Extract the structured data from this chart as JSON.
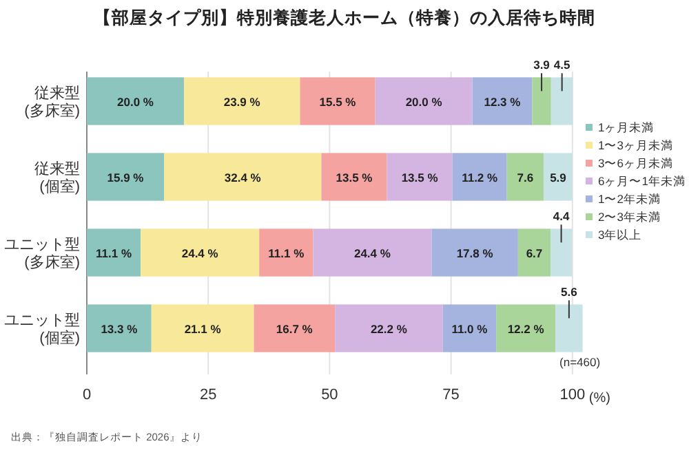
{
  "chart_data": {
    "type": "bar",
    "orientation": "horizontal",
    "stacked": true,
    "title": "【部屋タイプ別】特別養護老人ホーム（特養）の入居待ち時間",
    "xlabel": "(%)",
    "categories": [
      "従来型\n(多床室)",
      "従来型\n(個室)",
      "ユニット型\n(多床室)",
      "ユニット型\n(個室)"
    ],
    "xlim": [
      0,
      102.1
    ],
    "xticks": [
      0,
      25,
      50,
      75,
      100
    ],
    "grid": "x",
    "legend": "right",
    "series": [
      {
        "name": "1ヶ月未満",
        "color": "#8cc5be",
        "values": [
          20.0,
          15.9,
          11.1,
          13.3
        ],
        "value_labels": [
          "20.0 %",
          "15.9 %",
          "11.1 %",
          "13.3 %"
        ]
      },
      {
        "name": "1〜3ヶ月未満",
        "color": "#f8e89a",
        "values": [
          23.9,
          32.4,
          24.4,
          21.1
        ],
        "value_labels": [
          "23.9 %",
          "32.4 %",
          "24.4 %",
          "21.1 %"
        ]
      },
      {
        "name": "3〜6ヶ月未満",
        "color": "#f4a3a0",
        "values": [
          15.5,
          13.5,
          11.1,
          16.7
        ],
        "value_labels": [
          "15.5 %",
          "13.5 %",
          "11.1 %",
          "16.7 %"
        ]
      },
      {
        "name": "6ヶ月〜1年未満",
        "color": "#d4b5e2",
        "values": [
          20.0,
          13.5,
          24.4,
          22.2
        ],
        "value_labels": [
          "20.0 %",
          "13.5 %",
          "24.4 %",
          "22.2 %"
        ]
      },
      {
        "name": "1〜2年未満",
        "color": "#a5b4de",
        "values": [
          12.3,
          11.2,
          17.8,
          11.0
        ],
        "value_labels": [
          "12.3 %",
          "11.2 %",
          "17.8 %",
          "11.0 %"
        ]
      },
      {
        "name": "2〜3年未満",
        "color": "#a9d49a",
        "values": [
          3.9,
          7.6,
          6.7,
          12.2
        ],
        "value_labels": [
          "3.9",
          "7.6",
          "6.7",
          "12.2 %"
        ]
      },
      {
        "name": "3年以上",
        "color": "#c8e3e5",
        "values": [
          4.5,
          5.9,
          4.4,
          5.6
        ],
        "value_labels": [
          "4.5",
          "5.9",
          "4.4",
          "5.6"
        ]
      }
    ],
    "annotations": [
      "(n=460)",
      "出典：『独自調査レポート 2026』より"
    ]
  }
}
